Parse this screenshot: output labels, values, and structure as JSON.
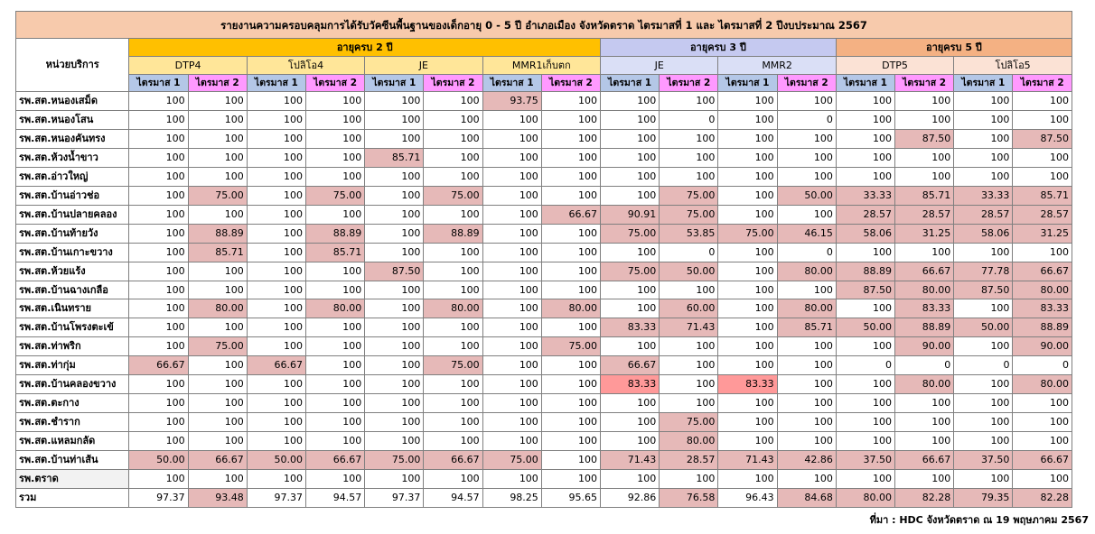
{
  "title": "รายงานความครอบคลุมการได้รับวัคซีนพื้นฐานของเด็กอายุ 0 - 5 ปี อำเภอเมือง จังหวัดตราด ไตรมาสที่ 1 และ ไตรมาสที่ 2 ปีงบประมาณ 2567",
  "row_header": "หน่วยบริการ",
  "groups": [
    "อายุครบ 2 ปี",
    "อายุครบ 3 ปี",
    "อายุครบ 5 ปี"
  ],
  "vaccines": [
    "DTP4",
    "โปลิโอ4",
    "JE",
    "MMR1เก็บตก",
    "JE",
    "MMR2",
    "DTP5",
    "โปลิโอ5"
  ],
  "quarters": [
    "ไตรมาส 1",
    "ไตรมาส 2"
  ],
  "rows": [
    {
      "name": "รพ.สต.หนองเสม็ด",
      "v": [
        "100",
        "100",
        "100",
        "100",
        "100",
        "100",
        "93.75",
        "100",
        "100",
        "100",
        "100",
        "100",
        "100",
        "100",
        "100",
        "100"
      ]
    },
    {
      "name": "รพ.สต.หนองโสน",
      "v": [
        "100",
        "100",
        "100",
        "100",
        "100",
        "100",
        "100",
        "100",
        "100",
        "0",
        "100",
        "0",
        "100",
        "100",
        "100",
        "100"
      ]
    },
    {
      "name": "รพ.สต.หนองคันทรง",
      "v": [
        "100",
        "100",
        "100",
        "100",
        "100",
        "100",
        "100",
        "100",
        "100",
        "100",
        "100",
        "100",
        "100",
        "87.50",
        "100",
        "87.50"
      ]
    },
    {
      "name": "รพ.สต.ห้วงน้ำขาว",
      "v": [
        "100",
        "100",
        "100",
        "100",
        "85.71",
        "100",
        "100",
        "100",
        "100",
        "100",
        "100",
        "100",
        "100",
        "100",
        "100",
        "100"
      ]
    },
    {
      "name": "รพ.สต.อ่าวใหญ่",
      "v": [
        "100",
        "100",
        "100",
        "100",
        "100",
        "100",
        "100",
        "100",
        "100",
        "100",
        "100",
        "100",
        "100",
        "100",
        "100",
        "100"
      ]
    },
    {
      "name": "รพ.สต.บ้านอ่าวช่อ",
      "v": [
        "100",
        "75.00",
        "100",
        "75.00",
        "100",
        "75.00",
        "100",
        "100",
        "100",
        "75.00",
        "100",
        "50.00",
        "33.33",
        "85.71",
        "33.33",
        "85.71"
      ]
    },
    {
      "name": "รพ.สต.บ้านปลายคลอง",
      "v": [
        "100",
        "100",
        "100",
        "100",
        "100",
        "100",
        "100",
        "66.67",
        "90.91",
        "75.00",
        "100",
        "100",
        "28.57",
        "28.57",
        "28.57",
        "28.57"
      ]
    },
    {
      "name": "รพ.สต.บ้านท้ายวัง",
      "v": [
        "100",
        "88.89",
        "100",
        "88.89",
        "100",
        "88.89",
        "100",
        "100",
        "75.00",
        "53.85",
        "75.00",
        "46.15",
        "58.06",
        "31.25",
        "58.06",
        "31.25"
      ]
    },
    {
      "name": "รพ.สต.บ้านเกาะขวาง",
      "v": [
        "100",
        "85.71",
        "100",
        "85.71",
        "100",
        "100",
        "100",
        "100",
        "100",
        "0",
        "100",
        "0",
        "100",
        "100",
        "100",
        "100"
      ]
    },
    {
      "name": "รพ.สต.ห้วยแร้ง",
      "v": [
        "100",
        "100",
        "100",
        "100",
        "87.50",
        "100",
        "100",
        "100",
        "75.00",
        "50.00",
        "100",
        "80.00",
        "88.89",
        "66.67",
        "77.78",
        "66.67"
      ]
    },
    {
      "name": "รพ.สต.บ้านฉางเกลือ",
      "v": [
        "100",
        "100",
        "100",
        "100",
        "100",
        "100",
        "100",
        "100",
        "100",
        "100",
        "100",
        "100",
        "87.50",
        "80.00",
        "87.50",
        "80.00"
      ]
    },
    {
      "name": "รพ.สต.เนินทราย",
      "v": [
        "100",
        "80.00",
        "100",
        "80.00",
        "100",
        "80.00",
        "100",
        "80.00",
        "100",
        "60.00",
        "100",
        "80.00",
        "100",
        "83.33",
        "100",
        "83.33"
      ]
    },
    {
      "name": "รพ.สต.บ้านโพรงตะเข้",
      "v": [
        "100",
        "100",
        "100",
        "100",
        "100",
        "100",
        "100",
        "100",
        "83.33",
        "71.43",
        "100",
        "85.71",
        "50.00",
        "88.89",
        "50.00",
        "88.89"
      ]
    },
    {
      "name": "รพ.สต.ท่าพริก",
      "v": [
        "100",
        "75.00",
        "100",
        "100",
        "100",
        "100",
        "100",
        "75.00",
        "100",
        "100",
        "100",
        "100",
        "100",
        "90.00",
        "100",
        "90.00"
      ]
    },
    {
      "name": "รพ.สต.ท่ากุ่ม",
      "v": [
        "66.67",
        "100",
        "66.67",
        "100",
        "100",
        "75.00",
        "100",
        "100",
        "66.67",
        "100",
        "100",
        "100",
        "0",
        "0",
        "0",
        "0"
      ]
    },
    {
      "name": "รพ.สต.บ้านคลองขวาง",
      "v": [
        "100",
        "100",
        "100",
        "100",
        "100",
        "100",
        "100",
        "100",
        "83.33",
        "100",
        "83.33",
        "100",
        "100",
        "80.00",
        "100",
        "80.00"
      ]
    },
    {
      "name": "รพ.สต.ตะกาง",
      "v": [
        "100",
        "100",
        "100",
        "100",
        "100",
        "100",
        "100",
        "100",
        "100",
        "100",
        "100",
        "100",
        "100",
        "100",
        "100",
        "100"
      ]
    },
    {
      "name": "รพ.สต.ชำราก",
      "v": [
        "100",
        "100",
        "100",
        "100",
        "100",
        "100",
        "100",
        "100",
        "100",
        "75.00",
        "100",
        "100",
        "100",
        "100",
        "100",
        "100"
      ]
    },
    {
      "name": "รพ.สต.แหลมกลัด",
      "v": [
        "100",
        "100",
        "100",
        "100",
        "100",
        "100",
        "100",
        "100",
        "100",
        "80.00",
        "100",
        "100",
        "100",
        "100",
        "100",
        "100"
      ]
    },
    {
      "name": "รพ.สต.บ้านท่าเส้น",
      "v": [
        "50.00",
        "66.67",
        "50.00",
        "66.67",
        "75.00",
        "66.67",
        "75.00",
        "100",
        "71.43",
        "28.57",
        "71.43",
        "42.86",
        "37.50",
        "66.67",
        "37.50",
        "66.67"
      ]
    },
    {
      "name": "รพ.ตราด",
      "v": [
        "100",
        "100",
        "100",
        "100",
        "100",
        "100",
        "100",
        "100",
        "100",
        "100",
        "100",
        "100",
        "100",
        "100",
        "100",
        "100"
      ]
    },
    {
      "name": "รวม",
      "v": [
        "97.37",
        "93.48",
        "97.37",
        "94.57",
        "97.37",
        "94.57",
        "98.25",
        "95.65",
        "92.86",
        "76.58",
        "96.43",
        "84.68",
        "80.00",
        "82.28",
        "79.35",
        "82.28"
      ]
    }
  ],
  "source": "ที่มา : HDC จังหวัดตราด ณ 19 พฤษภาคม 2567",
  "colors": {
    "title_bg": "#f7caac",
    "age2_bg": "#ffc000",
    "age3_bg": "#c5c9f0",
    "age5_bg": "#f4b183",
    "q1_bg": "#b4c7e7",
    "q2_bg": "#ff99ff",
    "below_target_bg": "#e6b9b8"
  }
}
